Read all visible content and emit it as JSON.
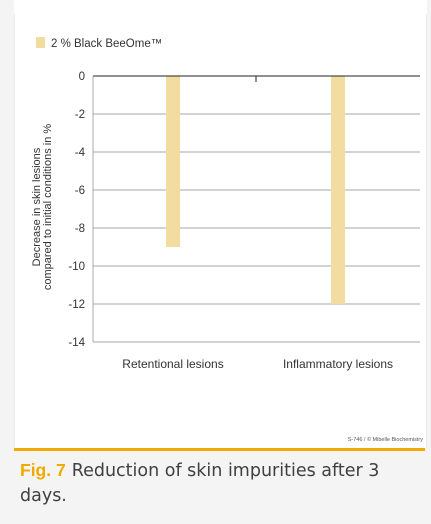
{
  "chart_data": {
    "type": "bar",
    "categories": [
      "Retentional lesions",
      "Inflammatory lesions"
    ],
    "series": [
      {
        "name": "2 % Black BeeOme™",
        "values": [
          -9,
          -12
        ],
        "color": "#f2dca0"
      }
    ],
    "ylabel_line1": "Decrease in skin lesions",
    "ylabel_line2": "compared to initial conditions in %",
    "ylim": [
      -14,
      0
    ],
    "yticks": [
      0,
      -2,
      -4,
      -6,
      -8,
      -10,
      -12,
      -14
    ],
    "grid": true,
    "legend_position": "top-left"
  },
  "credit": "S-746 / © Mibelle Biochemistry",
  "caption": {
    "fig_label": "Fig. 7",
    "text": "Reduction of skin impurities after 3 days."
  },
  "colors": {
    "accent": "#f2a900",
    "bar": "#f2dca0",
    "caption_background": "#f4f4f4"
  }
}
